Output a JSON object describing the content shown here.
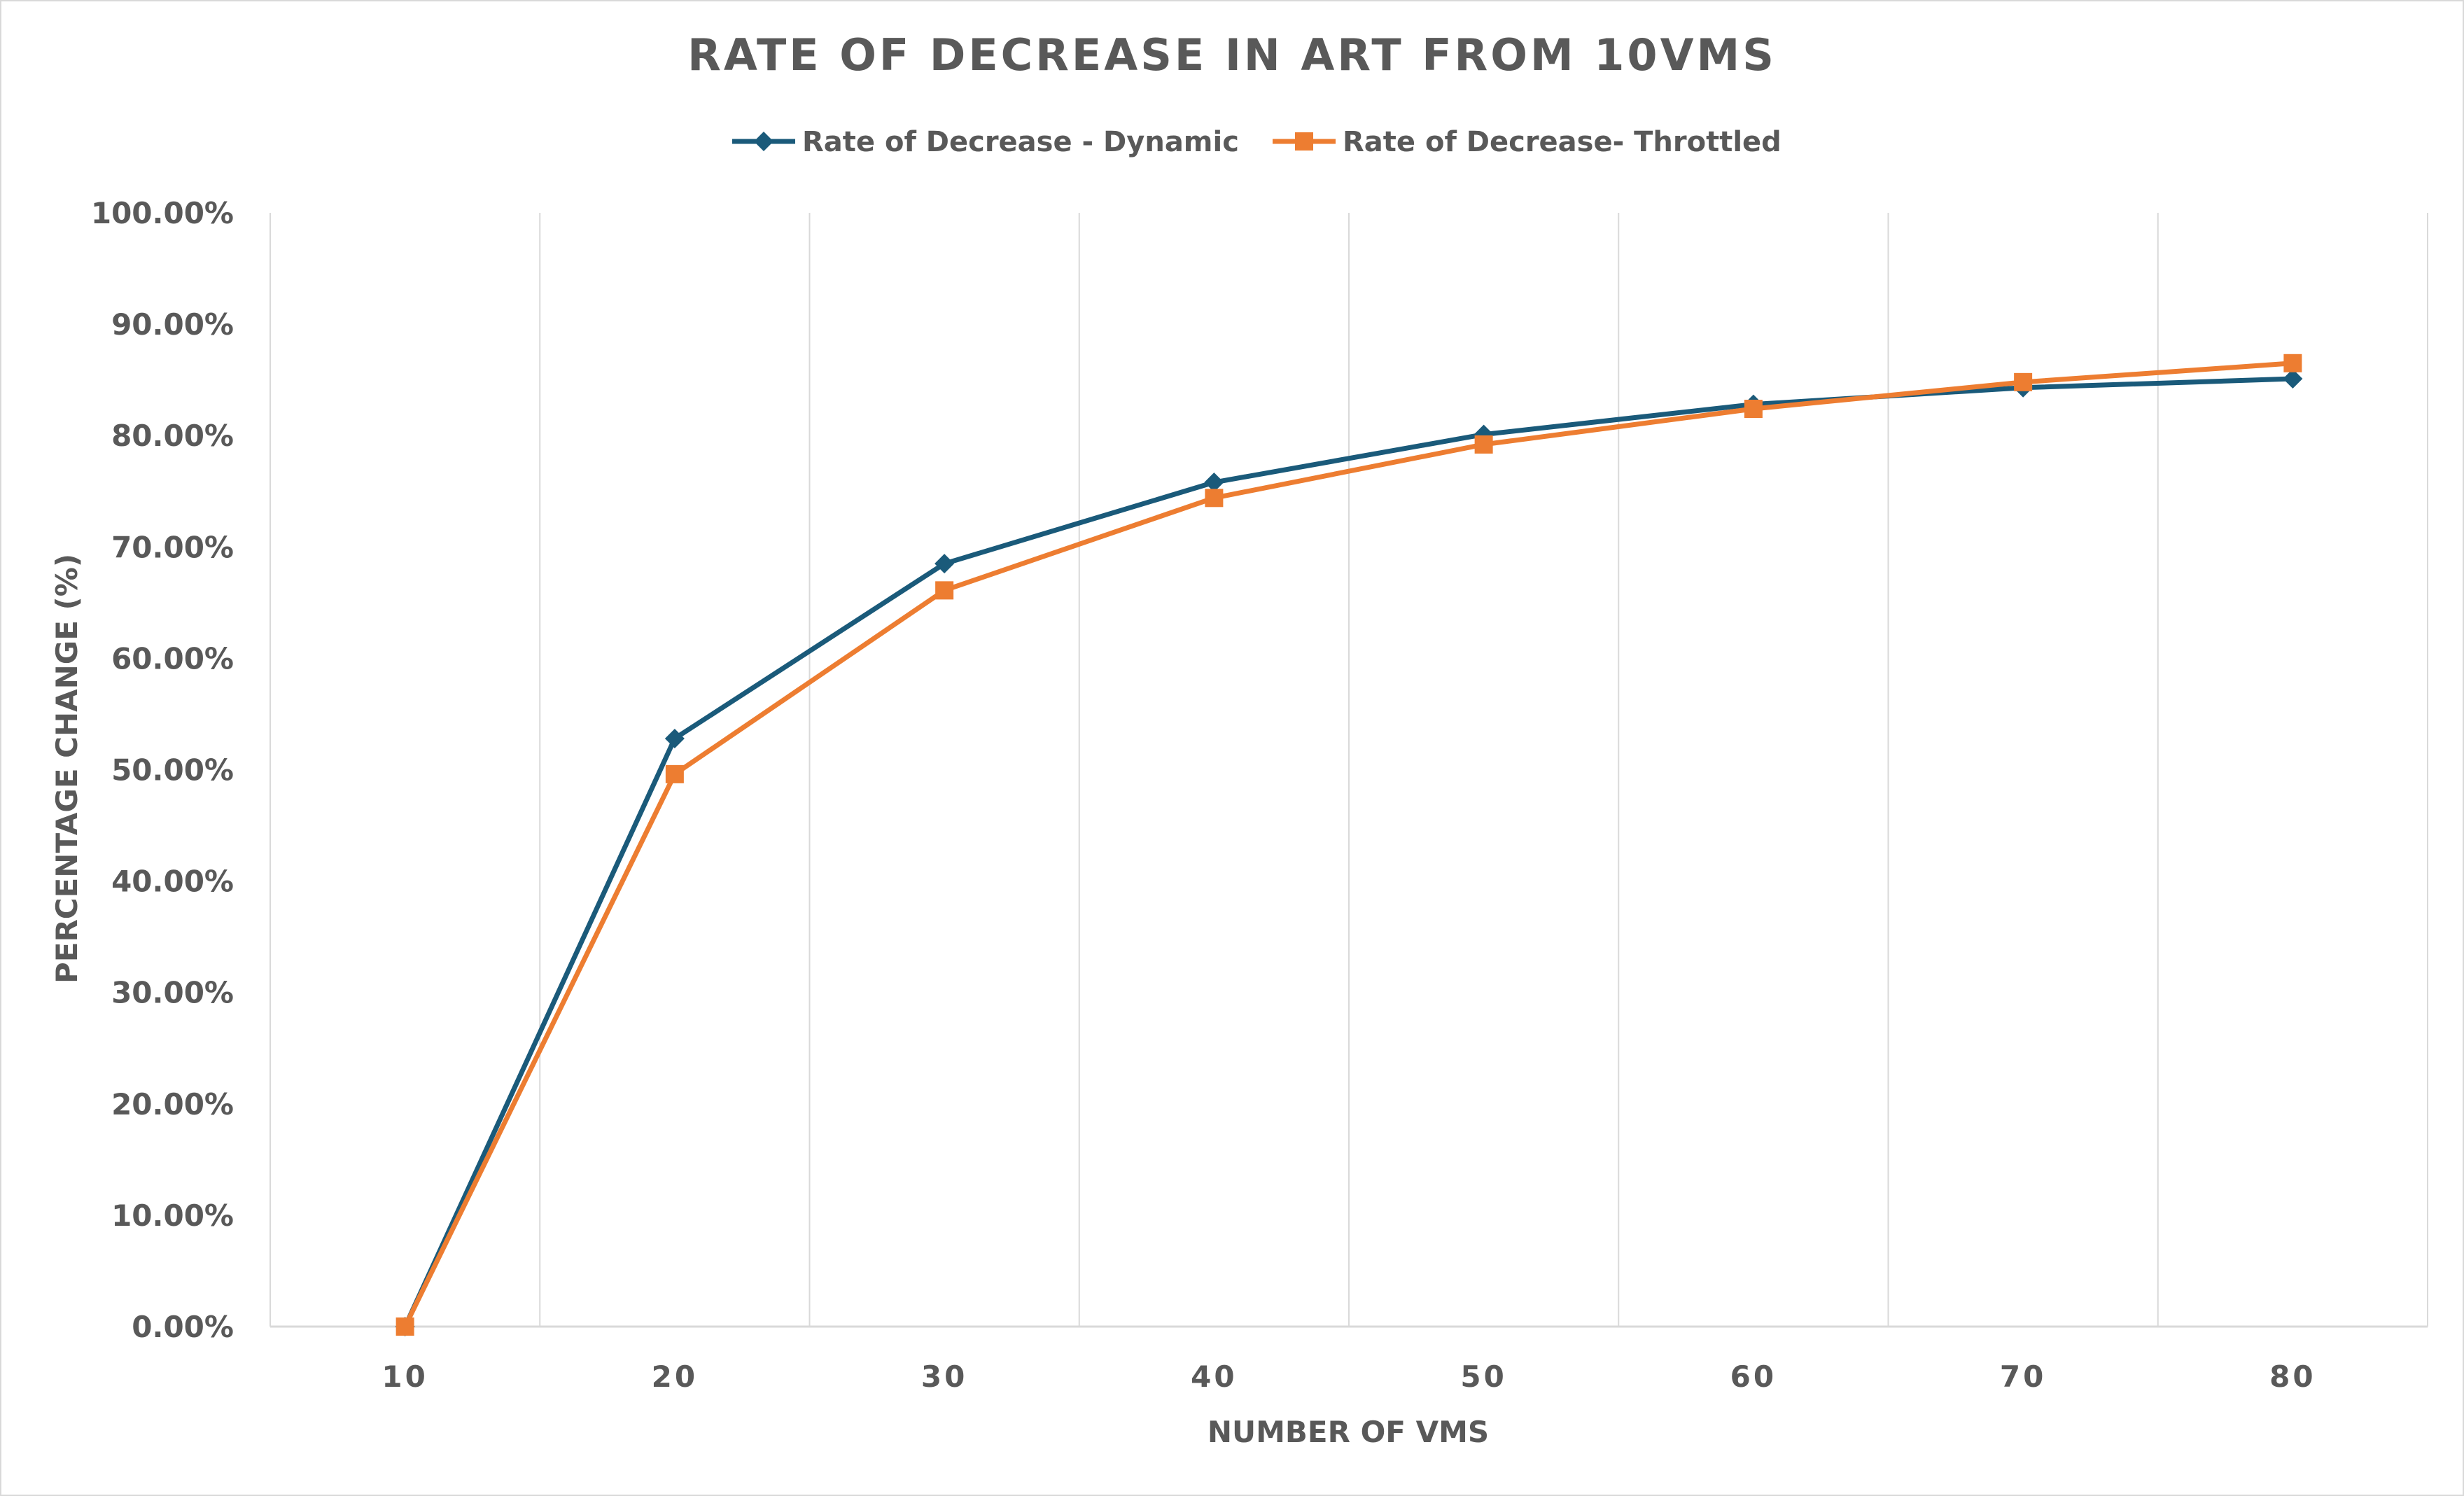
{
  "chart_data": {
    "type": "line",
    "title": "RATE OF DECREASE IN ART FROM 10VMS",
    "xlabel": "NUMBER OF VMS",
    "ylabel": "PERCENTAGE CHANGE (%)",
    "categories": [
      "10",
      "20",
      "30",
      "40",
      "50",
      "60",
      "70",
      "80"
    ],
    "ylim": [
      0,
      100
    ],
    "yticks": [
      "0.00%",
      "10.00%",
      "20.00%",
      "30.00%",
      "40.00%",
      "50.00%",
      "60.00%",
      "70.00%",
      "80.00%",
      "90.00%",
      "100.00%"
    ],
    "grid": "vertical",
    "legend_position": "top",
    "series": [
      {
        "name": "Rate of Decrease - Dynamic",
        "color": "#1a5a7a",
        "marker": "diamond",
        "values": [
          0,
          52.8,
          68.5,
          75.8,
          80.1,
          82.8,
          84.3,
          85.1
        ]
      },
      {
        "name": "Rate of Decrease- Throttled",
        "color": "#ed7d31",
        "marker": "square",
        "values": [
          0,
          49.6,
          66.1,
          74.4,
          79.2,
          82.4,
          84.8,
          86.5
        ]
      }
    ]
  }
}
